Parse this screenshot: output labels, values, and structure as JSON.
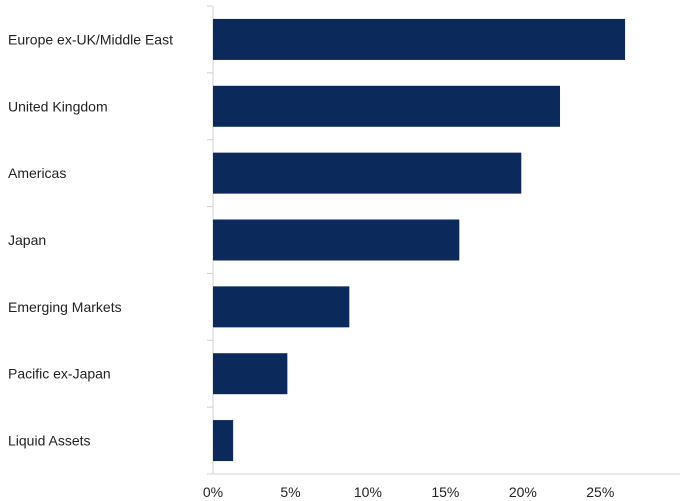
{
  "chart_data": {
    "type": "bar",
    "orientation": "horizontal",
    "categories": [
      "Europe ex-UK/Middle East",
      "United Kingdom",
      "Americas",
      "Japan",
      "Emerging Markets",
      "Pacific ex-Japan",
      "Liquid Assets"
    ],
    "values": [
      26.6,
      22.4,
      19.9,
      15.9,
      8.8,
      4.8,
      1.3
    ],
    "title": "",
    "xlabel": "",
    "ylabel": "",
    "xlim": [
      0,
      29.5
    ],
    "xticks": [
      0,
      5,
      10,
      15,
      20,
      25
    ],
    "xtick_labels": [
      "0%",
      "5%",
      "10%",
      "15%",
      "20%",
      "25%"
    ],
    "grid": false,
    "legend": "none",
    "colors": {
      "bar": "#0b2a5b",
      "axis": "#d0d0d0",
      "text": "#222222"
    }
  }
}
